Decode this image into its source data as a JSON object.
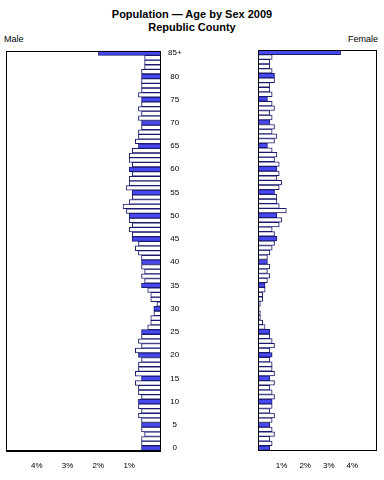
{
  "chart_data": {
    "type": "bar",
    "orientation": "horizontal",
    "title": "Population — Age by Sex 2009",
    "subtitle": "Republic County",
    "categories": [
      "0",
      null,
      null,
      null,
      null,
      "5",
      null,
      null,
      null,
      null,
      "10",
      null,
      null,
      null,
      null,
      "15",
      null,
      null,
      null,
      null,
      "20",
      null,
      null,
      null,
      null,
      "25",
      null,
      null,
      null,
      null,
      "30",
      null,
      null,
      null,
      null,
      "35",
      null,
      null,
      null,
      null,
      "40",
      null,
      null,
      null,
      null,
      "45",
      null,
      null,
      null,
      null,
      "50",
      null,
      null,
      null,
      null,
      "55",
      null,
      null,
      null,
      null,
      "60",
      null,
      null,
      null,
      null,
      "65",
      null,
      null,
      null,
      null,
      "70",
      null,
      null,
      null,
      null,
      "75",
      null,
      null,
      null,
      null,
      "80",
      null,
      null,
      null,
      null,
      "85+"
    ],
    "series": [
      {
        "name": "Male",
        "values": [
          0.6,
          0.6,
          0.6,
          0.5,
          0.6,
          0.6,
          0.6,
          0.7,
          0.6,
          0.7,
          0.7,
          0.6,
          0.7,
          0.7,
          0.8,
          0.6,
          0.8,
          0.7,
          0.7,
          0.6,
          0.7,
          0.8,
          0.6,
          0.7,
          0.6,
          0.6,
          0.4,
          0.3,
          0.3,
          0.2,
          0.2,
          0.1,
          0.3,
          0.3,
          0.4,
          0.6,
          0.5,
          0.6,
          0.5,
          0.6,
          0.6,
          0.6,
          0.7,
          0.8,
          0.7,
          0.9,
          0.9,
          1.0,
          0.9,
          1.0,
          1.0,
          1.1,
          1.2,
          1.0,
          0.9,
          0.9,
          1.1,
          1.0,
          1.0,
          0.9,
          1.0,
          0.9,
          1.0,
          1.0,
          0.9,
          0.7,
          0.8,
          0.7,
          0.7,
          0.6,
          0.6,
          0.7,
          0.6,
          0.7,
          0.6,
          0.6,
          0.7,
          0.6,
          0.6,
          0.6,
          0.6,
          0.6,
          0.5,
          0.5,
          0.5,
          2.0
        ],
        "colors": [
          "#4848f0",
          "#ffffff",
          "#ffffff",
          "#ffffff",
          "#ffffff",
          "#4848f0",
          "#ffffff",
          "#ffffff",
          "#ffffff",
          "#ffffff",
          "#4848f0",
          "#ffffff",
          "#ffffff",
          "#ffffff",
          "#ffffff",
          "#4848f0",
          "#ffffff",
          "#ffffff",
          "#ffffff",
          "#ffffff",
          "#4848f0",
          "#ffffff",
          "#ffffff",
          "#ffffff",
          "#ffffff",
          "#4848f0",
          "#ffffff",
          "#ffffff",
          "#ffffff",
          "#ffffff",
          "#4848f0",
          "#ffffff",
          "#ffffff",
          "#ffffff",
          "#ffffff",
          "#4848f0",
          "#ffffff",
          "#ffffff",
          "#ffffff",
          "#ffffff",
          "#4848f0",
          "#ffffff",
          "#ffffff",
          "#ffffff",
          "#ffffff",
          "#4848f0",
          "#ffffff",
          "#ffffff",
          "#ffffff",
          "#ffffff",
          "#4848f0",
          "#ffffff",
          "#ffffff",
          "#ffffff",
          "#ffffff",
          "#4848f0",
          "#ffffff",
          "#ffffff",
          "#ffffff",
          "#ffffff",
          "#4848f0",
          "#ffffff",
          "#ffffff",
          "#ffffff",
          "#ffffff",
          "#4848f0",
          "#ffffff",
          "#ffffff",
          "#ffffff",
          "#ffffff",
          "#4848f0",
          "#ffffff",
          "#ffffff",
          "#ffffff",
          "#ffffff",
          "#4848f0",
          "#ffffff",
          "#ffffff",
          "#ffffff",
          "#ffffff",
          "#4848f0",
          "#ffffff",
          "#ffffff",
          "#ffffff",
          "#ffffff",
          "#4848f0"
        ]
      },
      {
        "name": "Female",
        "values": [
          0.5,
          0.6,
          0.5,
          0.7,
          0.6,
          0.5,
          0.6,
          0.7,
          0.5,
          0.6,
          0.6,
          0.7,
          0.6,
          0.5,
          0.7,
          0.5,
          0.7,
          0.6,
          0.6,
          0.5,
          0.6,
          0.5,
          0.7,
          0.6,
          0.5,
          0.5,
          0.3,
          0.2,
          0.1,
          0.1,
          0.05,
          0.1,
          0.2,
          0.2,
          0.3,
          0.3,
          0.4,
          0.5,
          0.4,
          0.5,
          0.4,
          0.4,
          0.5,
          0.6,
          0.7,
          0.8,
          0.7,
          0.6,
          0.9,
          1.0,
          0.8,
          1.2,
          0.9,
          0.8,
          0.8,
          0.7,
          0.9,
          1.0,
          0.8,
          0.9,
          0.8,
          0.9,
          0.7,
          0.8,
          0.6,
          0.4,
          0.7,
          0.8,
          0.6,
          0.7,
          0.5,
          0.6,
          0.5,
          0.7,
          0.6,
          0.4,
          0.6,
          0.5,
          0.5,
          0.7,
          0.7,
          0.6,
          0.5,
          0.5,
          0.6,
          3.5
        ],
        "colors": [
          "#4848f0",
          "#ffffff",
          "#ffffff",
          "#ffffff",
          "#ffffff",
          "#4848f0",
          "#ffffff",
          "#ffffff",
          "#ffffff",
          "#ffffff",
          "#4848f0",
          "#ffffff",
          "#ffffff",
          "#ffffff",
          "#ffffff",
          "#4848f0",
          "#ffffff",
          "#ffffff",
          "#ffffff",
          "#ffffff",
          "#4848f0",
          "#ffffff",
          "#ffffff",
          "#ffffff",
          "#ffffff",
          "#4848f0",
          "#ffffff",
          "#ffffff",
          "#ffffff",
          "#ffffff",
          "#4848f0",
          "#ffffff",
          "#ffffff",
          "#ffffff",
          "#ffffff",
          "#4848f0",
          "#ffffff",
          "#ffffff",
          "#ffffff",
          "#ffffff",
          "#4848f0",
          "#ffffff",
          "#ffffff",
          "#ffffff",
          "#ffffff",
          "#4848f0",
          "#ffffff",
          "#ffffff",
          "#ffffff",
          "#ffffff",
          "#4848f0",
          "#ffffff",
          "#ffffff",
          "#ffffff",
          "#ffffff",
          "#4848f0",
          "#ffffff",
          "#ffffff",
          "#ffffff",
          "#ffffff",
          "#4848f0",
          "#ffffff",
          "#ffffff",
          "#ffffff",
          "#ffffff",
          "#4848f0",
          "#ffffff",
          "#ffffff",
          "#ffffff",
          "#ffffff",
          "#4848f0",
          "#ffffff",
          "#ffffff",
          "#ffffff",
          "#ffffff",
          "#4848f0",
          "#ffffff",
          "#ffffff",
          "#ffffff",
          "#ffffff",
          "#4848f0",
          "#ffffff",
          "#ffffff",
          "#ffffff",
          "#ffffff",
          "#4848f0"
        ]
      }
    ],
    "xlim": [
      0,
      5
    ],
    "xticks": [
      {
        "value": 1,
        "label": "1%"
      },
      {
        "value": 2,
        "label": "2%"
      },
      {
        "value": 3,
        "label": "3%"
      },
      {
        "value": 4,
        "label": "4%"
      }
    ],
    "grid": false,
    "tick_labels": true
  }
}
